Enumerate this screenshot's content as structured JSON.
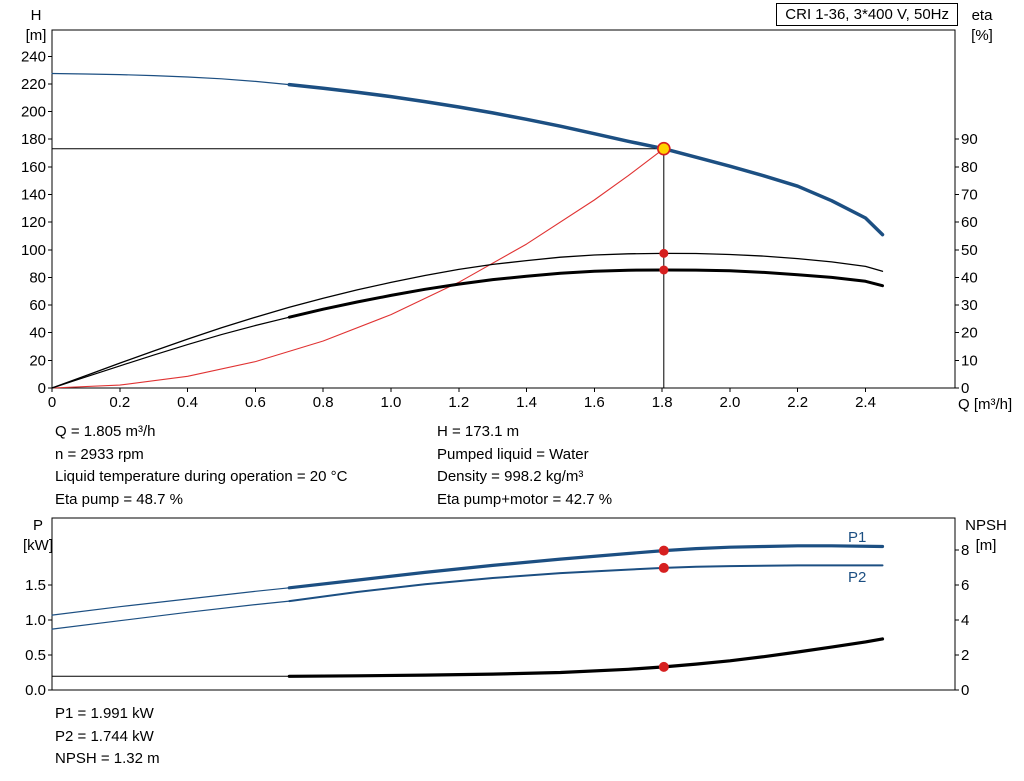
{
  "title_box": {
    "label": "CRI 1-36, 3*400 V, 50Hz"
  },
  "axis_corner_labels": {
    "top_left": {
      "line1": "H",
      "line2": "[m]"
    },
    "top_right": {
      "line1": "eta",
      "line2": "[%]"
    },
    "x_axis": "Q [m³/h]",
    "bottom_left": {
      "line1": "P",
      "line2": "[kW]"
    },
    "bottom_right": {
      "line1": "NPSH",
      "line2": "[m]"
    }
  },
  "curve_labels": {
    "p1": "P1",
    "p2": "P2"
  },
  "results_top_left": [
    "Q = 1.805 m³/h",
    "n = 2933 rpm",
    "Liquid temperature during operation = 20 °C",
    "Eta pump = 48.7 %"
  ],
  "results_top_right": [
    "H = 173.1 m",
    "Pumped liquid = Water",
    "Density = 998.2 kg/m³",
    "Eta pump+motor = 42.7 %"
  ],
  "results_bottom": [
    "P1 = 1.991 kW",
    "P2 = 1.744 kW",
    "NPSH = 1.32 m"
  ],
  "colors": {
    "curve_blue": "#1c4f82",
    "curve_black": "#000000",
    "curve_red": "#e03333",
    "dot_red": "#d62020",
    "operating_point_yellow": "#ffd200"
  },
  "chart_data": [
    {
      "type": "line",
      "title": "CRI 1-36, 3*400 V, 50Hz",
      "xlabel": "Q [m³/h]",
      "ylabel_left": "H [m]",
      "ylabel_right": "eta [%]",
      "grid": false,
      "legend": "none",
      "xlim": [
        0,
        2.664
      ],
      "ylim_left": [
        0,
        259
      ],
      "right_to_left": 2,
      "x_ticks": {
        "values": [
          0,
          0.2,
          0.4,
          0.6,
          0.8,
          1.0,
          1.2,
          1.4,
          1.6,
          1.8,
          2.0,
          2.2,
          2.4
        ],
        "labels": [
          "0",
          "0.2",
          "0.4",
          "0.6",
          "0.8",
          "1.0",
          "1.2",
          "1.4",
          "1.6",
          "1.8",
          "2.0",
          "2.2",
          "2.4"
        ]
      },
      "left_ticks": {
        "values": [
          0,
          20,
          40,
          60,
          80,
          100,
          120,
          140,
          160,
          180,
          200,
          220,
          240
        ],
        "labels": [
          "0",
          "20",
          "40",
          "60",
          "80",
          "100",
          "120",
          "140",
          "160",
          "180",
          "200",
          "220",
          "240"
        ]
      },
      "right_ticks": {
        "values": [
          0,
          10,
          20,
          30,
          40,
          50,
          60,
          70,
          80,
          90
        ],
        "labels": [
          "0",
          "10",
          "20",
          "30",
          "40",
          "50",
          "60",
          "70",
          "80",
          "90"
        ]
      },
      "series": [
        {
          "name": "crosshair",
          "color": "#000000",
          "width": 1,
          "axis": "left",
          "x": [
            0,
            1.805,
            1.805
          ],
          "y": [
            173.1,
            173.1,
            0
          ]
        },
        {
          "name": "system-curve",
          "color": "#e03333",
          "width": 1.1,
          "axis": "left",
          "x": [
            0,
            0.2,
            0.4,
            0.6,
            0.8,
            1.0,
            1.2,
            1.4,
            1.6,
            1.7,
            1.805
          ],
          "y": [
            0,
            2.1,
            8.5,
            19.1,
            34.0,
            53.1,
            76.5,
            104.1,
            136.0,
            153.6,
            173.1
          ]
        },
        {
          "name": "hq-thin",
          "color": "#1c4f82",
          "width": 1.2,
          "axis": "left",
          "x": [
            0,
            0.1,
            0.2,
            0.3,
            0.4,
            0.5,
            0.6,
            0.7
          ],
          "y": [
            227.5,
            227.2,
            226.7,
            226.0,
            225.0,
            223.7,
            221.8,
            219.5
          ]
        },
        {
          "name": "hq-thick",
          "color": "#1c4f82",
          "width": 3.5,
          "axis": "left",
          "x": [
            0.7,
            0.8,
            0.9,
            1.0,
            1.1,
            1.2,
            1.3,
            1.4,
            1.5,
            1.6,
            1.7,
            1.805,
            1.9,
            2.0,
            2.1,
            2.2,
            2.3,
            2.4,
            2.45
          ],
          "y": [
            219.5,
            216.9,
            214.0,
            210.8,
            207.2,
            203.3,
            199.0,
            194.4,
            189.4,
            184.0,
            178.5,
            173.1,
            167.0,
            160.5,
            153.5,
            146.0,
            135.5,
            123.0,
            111.0
          ]
        },
        {
          "name": "eta-pump",
          "color": "#000000",
          "width": 1.3,
          "axis": "right",
          "x": [
            0,
            0.1,
            0.2,
            0.3,
            0.4,
            0.5,
            0.6,
            0.7,
            0.8,
            0.9,
            1.0,
            1.1,
            1.2,
            1.3,
            1.4,
            1.5,
            1.6,
            1.7,
            1.805,
            1.9,
            2.0,
            2.1,
            2.2,
            2.3,
            2.4,
            2.45
          ],
          "y": [
            0,
            4.5,
            9.0,
            13.4,
            17.7,
            21.8,
            25.6,
            29.2,
            32.5,
            35.5,
            38.2,
            40.7,
            42.9,
            44.7,
            46.1,
            47.3,
            48.1,
            48.55,
            48.7,
            48.65,
            48.3,
            47.7,
            46.8,
            45.6,
            44.0,
            42.2
          ]
        },
        {
          "name": "eta-pump-motor-thin",
          "color": "#000000",
          "width": 1.2,
          "axis": "right",
          "x": [
            0,
            0.1,
            0.2,
            0.3,
            0.4,
            0.5,
            0.6,
            0.7
          ],
          "y": [
            0,
            4.0,
            8.0,
            11.9,
            15.7,
            19.3,
            22.6,
            25.6
          ]
        },
        {
          "name": "eta-pump-motor-thick",
          "color": "#000000",
          "width": 3,
          "axis": "right",
          "x": [
            0.7,
            0.8,
            0.9,
            1.0,
            1.1,
            1.2,
            1.3,
            1.4,
            1.5,
            1.6,
            1.7,
            1.805,
            1.9,
            2.0,
            2.1,
            2.2,
            2.3,
            2.4,
            2.45
          ],
          "y": [
            25.6,
            28.5,
            31.1,
            33.5,
            35.7,
            37.6,
            39.2,
            40.4,
            41.5,
            42.2,
            42.6,
            42.7,
            42.65,
            42.4,
            41.8,
            41.0,
            40.0,
            38.6,
            37.0
          ]
        }
      ],
      "markers": [
        {
          "name": "eta-pump-dot",
          "x": 1.805,
          "y": 48.7,
          "axis": "right",
          "r": 4.5,
          "fill": "#d62020"
        },
        {
          "name": "eta-pump-motor-dot",
          "x": 1.805,
          "y": 42.7,
          "axis": "right",
          "r": 4.5,
          "fill": "#d62020"
        },
        {
          "name": "operating-point-marker",
          "x": 1.805,
          "y": 173.1,
          "axis": "left",
          "r": 6,
          "fill": "#ffd200",
          "stroke": "#d62020",
          "sw": 1.6
        }
      ],
      "operating_point": {
        "q": 1.805,
        "h": 173.1,
        "eta_pump": 48.7,
        "eta_pump_motor": 42.7
      }
    },
    {
      "type": "line",
      "title": "Power and NPSH",
      "xlabel": "Q [m³/h]",
      "ylabel_left": "P [kW]",
      "ylabel_right": "NPSH [m]",
      "grid": false,
      "legend": "none",
      "xlim": [
        0,
        2.664
      ],
      "ylim_left": [
        0,
        2.457
      ],
      "right_to_left": 0.25,
      "x_ticks": {
        "values": [],
        "labels": []
      },
      "left_ticks": {
        "values": [
          0,
          0.5,
          1,
          1.5
        ],
        "labels": [
          "0.0",
          "0.5",
          "1.0",
          "1.5"
        ]
      },
      "right_ticks": {
        "values": [
          0,
          2,
          4,
          6,
          8
        ],
        "labels": [
          "0",
          "2",
          "4",
          "6",
          "8"
        ]
      },
      "series": [
        {
          "name": "p2-thin",
          "color": "#1c4f82",
          "width": 1.2,
          "axis": "left",
          "x": [
            0,
            0.2,
            0.4,
            0.6,
            0.7
          ],
          "y": [
            0.87,
            0.99,
            1.11,
            1.22,
            1.27
          ]
        },
        {
          "name": "p2-thick",
          "color": "#1c4f82",
          "width": 2,
          "axis": "left",
          "x": [
            0.7,
            0.9,
            1.1,
            1.3,
            1.5,
            1.7,
            1.805,
            1.9,
            2.0,
            2.2,
            2.45
          ],
          "y": [
            1.27,
            1.4,
            1.51,
            1.6,
            1.67,
            1.72,
            1.744,
            1.76,
            1.77,
            1.78,
            1.78
          ]
        },
        {
          "name": "p1-thin",
          "color": "#1c4f82",
          "width": 1.2,
          "axis": "left",
          "x": [
            0,
            0.2,
            0.4,
            0.6,
            0.7
          ],
          "y": [
            1.07,
            1.19,
            1.3,
            1.41,
            1.46
          ]
        },
        {
          "name": "p1-thick",
          "color": "#1c4f82",
          "width": 3.2,
          "axis": "left",
          "x": [
            0.7,
            0.9,
            1.1,
            1.3,
            1.5,
            1.7,
            1.805,
            1.9,
            2.0,
            2.1,
            2.2,
            2.3,
            2.45
          ],
          "y": [
            1.46,
            1.57,
            1.68,
            1.78,
            1.87,
            1.95,
            1.991,
            2.02,
            2.04,
            2.05,
            2.06,
            2.06,
            2.05
          ]
        },
        {
          "name": "npsh-thin",
          "color": "#000000",
          "width": 1,
          "axis": "right",
          "x": [
            0,
            0.7
          ],
          "y": [
            0.78,
            0.78
          ]
        },
        {
          "name": "npsh-thick",
          "color": "#000000",
          "width": 3.2,
          "axis": "right",
          "x": [
            0.7,
            0.9,
            1.1,
            1.3,
            1.5,
            1.7,
            1.805,
            1.9,
            2.0,
            2.1,
            2.2,
            2.3,
            2.4,
            2.45
          ],
          "y": [
            0.78,
            0.81,
            0.85,
            0.91,
            1.0,
            1.18,
            1.32,
            1.48,
            1.67,
            1.9,
            2.17,
            2.45,
            2.75,
            2.92
          ]
        }
      ],
      "markers": [
        {
          "name": "p1-dot",
          "x": 1.805,
          "y": 1.991,
          "axis": "left",
          "r": 5,
          "fill": "#d62020"
        },
        {
          "name": "p2-dot",
          "x": 1.805,
          "y": 1.744,
          "axis": "left",
          "r": 5,
          "fill": "#d62020"
        },
        {
          "name": "npsh-dot",
          "x": 1.805,
          "y": 1.32,
          "axis": "right",
          "r": 5,
          "fill": "#d62020"
        }
      ],
      "operating_point": {
        "q": 1.805,
        "p1_kw": 1.991,
        "p2_kw": 1.744,
        "npsh_m": 1.32
      }
    }
  ]
}
